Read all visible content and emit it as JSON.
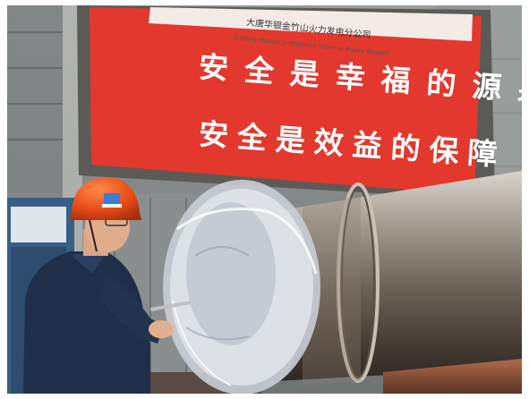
{
  "banner": {
    "company_line": "大唐华银金竹山火力发电分公司",
    "company_line_sub": "Datang Huayin Jinzhushan Thermal Power Branch",
    "slogan_1": "安全是幸福的源泉",
    "slogan_2": "安全是效益的保障"
  },
  "colors": {
    "banner_red": "#e3382d",
    "helmet_orange": "#e84a18",
    "jacket_navy": "#1f2f4a",
    "wall_grey": "#8c9092",
    "steel": "#a8a39b"
  }
}
